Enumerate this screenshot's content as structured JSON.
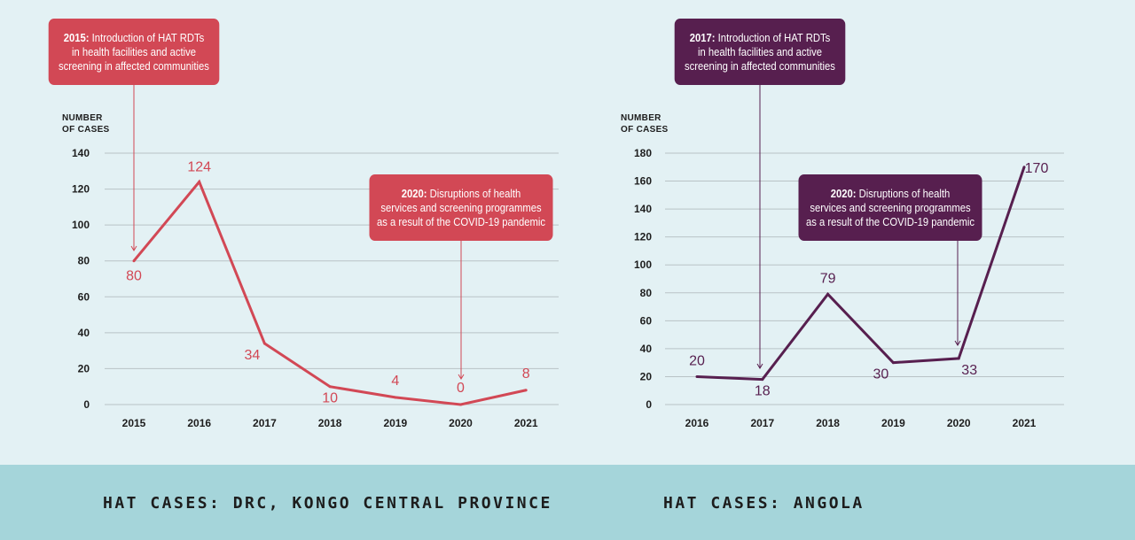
{
  "colors": {
    "background": "#e3f1f4",
    "footer": "#a5d5da",
    "drc": "#d24855",
    "angola": "#571f4f",
    "grid": "#b9c3c6",
    "text": "#1d1d1d"
  },
  "chart_data": [
    {
      "type": "line",
      "id": "drc",
      "title": "HAT CASES: DRC, KONGO CENTRAL PROVINCE",
      "ylabel_line1": "NUMBER",
      "ylabel_line2": "OF CASES",
      "xlabel": "",
      "x": [
        "2015",
        "2016",
        "2017",
        "2018",
        "2019",
        "2020",
        "2021"
      ],
      "values": [
        80,
        124,
        34,
        10,
        4,
        0,
        8
      ],
      "data_labels": [
        "80",
        "124",
        "34",
        "10",
        "4",
        "0",
        "8"
      ],
      "yticks": [
        0,
        20,
        40,
        60,
        80,
        100,
        120,
        140
      ],
      "ylim": [
        0,
        140
      ],
      "grid": true,
      "color": "#d24855",
      "annotations": [
        {
          "year_bold": "2015:",
          "text": "Introduction of HAT RDTs in health facilities and active screening in affected communities",
          "line1_rest": " Introduction of HAT RDTs",
          "line2": "in health facilities and active",
          "line3": "screening in affected communities",
          "points_to": "2015"
        },
        {
          "year_bold": "2020:",
          "text": "Disruptions of health services and screening programmes as a result of the COVID-19 pandemic",
          "line1_rest": " Disruptions of health",
          "line2": "services and screening programmes",
          "line3": "as a result of the COVID-19 pandemic",
          "points_to": "2020"
        }
      ]
    },
    {
      "type": "line",
      "id": "angola",
      "title": "HAT CASES: ANGOLA",
      "ylabel_line1": "NUMBER",
      "ylabel_line2": "OF CASES",
      "xlabel": "",
      "x": [
        "2016",
        "2017",
        "2018",
        "2019",
        "2020",
        "2021"
      ],
      "values": [
        20,
        18,
        79,
        30,
        33,
        170
      ],
      "data_labels": [
        "20",
        "18",
        "79",
        "30",
        "33",
        "170"
      ],
      "yticks": [
        0,
        20,
        40,
        60,
        80,
        100,
        120,
        140,
        160,
        180
      ],
      "ylim": [
        0,
        180
      ],
      "grid": true,
      "color": "#571f4f",
      "annotations": [
        {
          "year_bold": "2017:",
          "text": "Introduction of HAT RDTs in health facilities and active screening in affected communities",
          "line1_rest": " Introduction of HAT RDTs",
          "line2": "in health facilities and active",
          "line3": "screening in affected communities",
          "points_to": "2017"
        },
        {
          "year_bold": "2020:",
          "text": "Disruptions of health services and screening programmes as a result of the COVID-19 pandemic",
          "line1_rest": " Disruptions of health",
          "line2": "services and screening programmes",
          "line3": "as a result of the COVID-19 pandemic",
          "points_to": "2020"
        }
      ]
    }
  ]
}
